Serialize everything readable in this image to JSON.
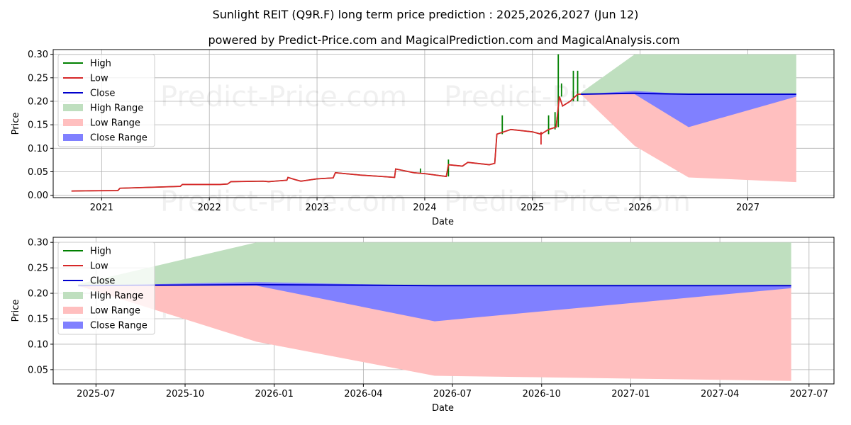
{
  "title": "Sunlight REIT (Q9R.F) long term price prediction : 2025,2026,2027 (Jun 12)",
  "subtitle": "powered by Predict-Price.com and MagicalPrediction.com and MagicalAnalysis.com",
  "watermark": "Predict-Price.com",
  "colors": {
    "high": "#008000",
    "low": "#d62728",
    "close": "#0000cd",
    "high_range": "#bfdfbf",
    "low_range": "#ffbfbf",
    "close_range": "#8080ff"
  },
  "chart_data": [
    {
      "type": "line",
      "name": "history-and-forecast",
      "xlabel": "Date",
      "ylabel": "Price",
      "xlim": [
        2020.55,
        2027.8
      ],
      "ylim": [
        -0.005,
        0.31
      ],
      "yticks": [
        0.0,
        0.05,
        0.1,
        0.15,
        0.2,
        0.25,
        0.3
      ],
      "ytick_labels": [
        "0.00",
        "0.05",
        "0.10",
        "0.15",
        "0.20",
        "0.25",
        "0.30"
      ],
      "xticks": [
        2021,
        2022,
        2023,
        2024,
        2025,
        2026,
        2027
      ],
      "xtick_labels": [
        "2021",
        "2022",
        "2023",
        "2024",
        "2025",
        "2026",
        "2027"
      ],
      "grid": true,
      "legend_position": "top-left",
      "legend": [
        "High",
        "Low",
        "Close",
        "High Range",
        "Low Range",
        "Close Range"
      ],
      "history": {
        "x": [
          2020.72,
          2020.85,
          2021.15,
          2021.17,
          2021.6,
          2021.73,
          2021.75,
          2022.0,
          2022.1,
          2022.17,
          2022.2,
          2022.5,
          2022.55,
          2022.72,
          2022.73,
          2022.8,
          2022.85,
          2023.0,
          2023.15,
          2023.17,
          2023.4,
          2023.6,
          2023.72,
          2023.73,
          2023.9,
          2024.0,
          2024.2,
          2024.22,
          2024.35,
          2024.4,
          2024.6,
          2024.65,
          2024.67,
          2024.8,
          2025.0,
          2025.08,
          2025.15,
          2025.22,
          2025.25,
          2025.28,
          2025.35,
          2025.42,
          2025.45
        ],
        "values": [
          0.009,
          0.0095,
          0.01,
          0.015,
          0.018,
          0.019,
          0.023,
          0.023,
          0.023,
          0.024,
          0.029,
          0.03,
          0.029,
          0.032,
          0.038,
          0.033,
          0.03,
          0.035,
          0.037,
          0.048,
          0.043,
          0.04,
          0.038,
          0.056,
          0.048,
          0.046,
          0.04,
          0.065,
          0.062,
          0.07,
          0.065,
          0.068,
          0.13,
          0.14,
          0.135,
          0.13,
          0.14,
          0.145,
          0.21,
          0.19,
          0.2,
          0.215,
          0.215
        ]
      },
      "high_spikes": [
        {
          "x": 2023.96,
          "top": 0.057
        },
        {
          "x": 2024.22,
          "top": 0.076
        },
        {
          "x": 2024.72,
          "top": 0.17
        },
        {
          "x": 2025.15,
          "top": 0.17
        },
        {
          "x": 2025.21,
          "top": 0.177
        },
        {
          "x": 2025.24,
          "top": 0.3
        },
        {
          "x": 2025.27,
          "top": 0.238
        },
        {
          "x": 2025.38,
          "top": 0.265
        },
        {
          "x": 2025.42,
          "top": 0.265
        }
      ],
      "low_spikes": [
        {
          "x": 2025.08,
          "bottom": 0.108
        }
      ],
      "forecast": {
        "x": [
          2025.45,
          2025.95,
          2026.45,
          2027.45
        ],
        "high_upper": [
          0.218,
          0.3,
          0.3,
          0.3
        ],
        "high_lower": [
          0.215,
          0.215,
          0.215,
          0.215
        ],
        "low_upper": [
          0.215,
          0.215,
          0.215,
          0.21
        ],
        "low_lower": [
          0.215,
          0.105,
          0.038,
          0.028
        ],
        "close_upper": [
          0.215,
          0.222,
          0.215,
          0.215
        ],
        "close_lower": [
          0.215,
          0.215,
          0.145,
          0.21
        ],
        "close_line": [
          0.215,
          0.217,
          0.215,
          0.215
        ]
      }
    },
    {
      "type": "line",
      "name": "forecast-zoom",
      "xlabel": "Date",
      "ylabel": "Price",
      "xlim": [
        2025.38,
        2027.57
      ],
      "ylim": [
        0.022,
        0.31
      ],
      "yticks": [
        0.05,
        0.1,
        0.15,
        0.2,
        0.25,
        0.3
      ],
      "ytick_labels": [
        "0.05",
        "0.10",
        "0.15",
        "0.20",
        "0.25",
        "0.30"
      ],
      "xticks": [
        2025.5,
        2025.75,
        2026.0,
        2026.25,
        2026.5,
        2026.75,
        2027.0,
        2027.25,
        2027.5
      ],
      "xtick_labels": [
        "2025-07",
        "2025-10",
        "2026-01",
        "2026-04",
        "2026-07",
        "2026-10",
        "2027-01",
        "2027-04",
        "2027-07"
      ],
      "grid": true,
      "legend_position": "top-left",
      "legend": [
        "High",
        "Low",
        "Close",
        "High Range",
        "Low Range",
        "Close Range"
      ],
      "forecast": {
        "x": [
          2025.45,
          2025.95,
          2026.45,
          2027.45
        ],
        "high_upper": [
          0.218,
          0.3,
          0.3,
          0.3
        ],
        "high_lower": [
          0.215,
          0.215,
          0.215,
          0.215
        ],
        "low_upper": [
          0.215,
          0.215,
          0.215,
          0.21
        ],
        "low_lower": [
          0.215,
          0.105,
          0.038,
          0.028
        ],
        "close_upper": [
          0.215,
          0.222,
          0.215,
          0.215
        ],
        "close_lower": [
          0.215,
          0.215,
          0.145,
          0.21
        ],
        "close_line": [
          0.215,
          0.217,
          0.215,
          0.215
        ]
      }
    }
  ]
}
